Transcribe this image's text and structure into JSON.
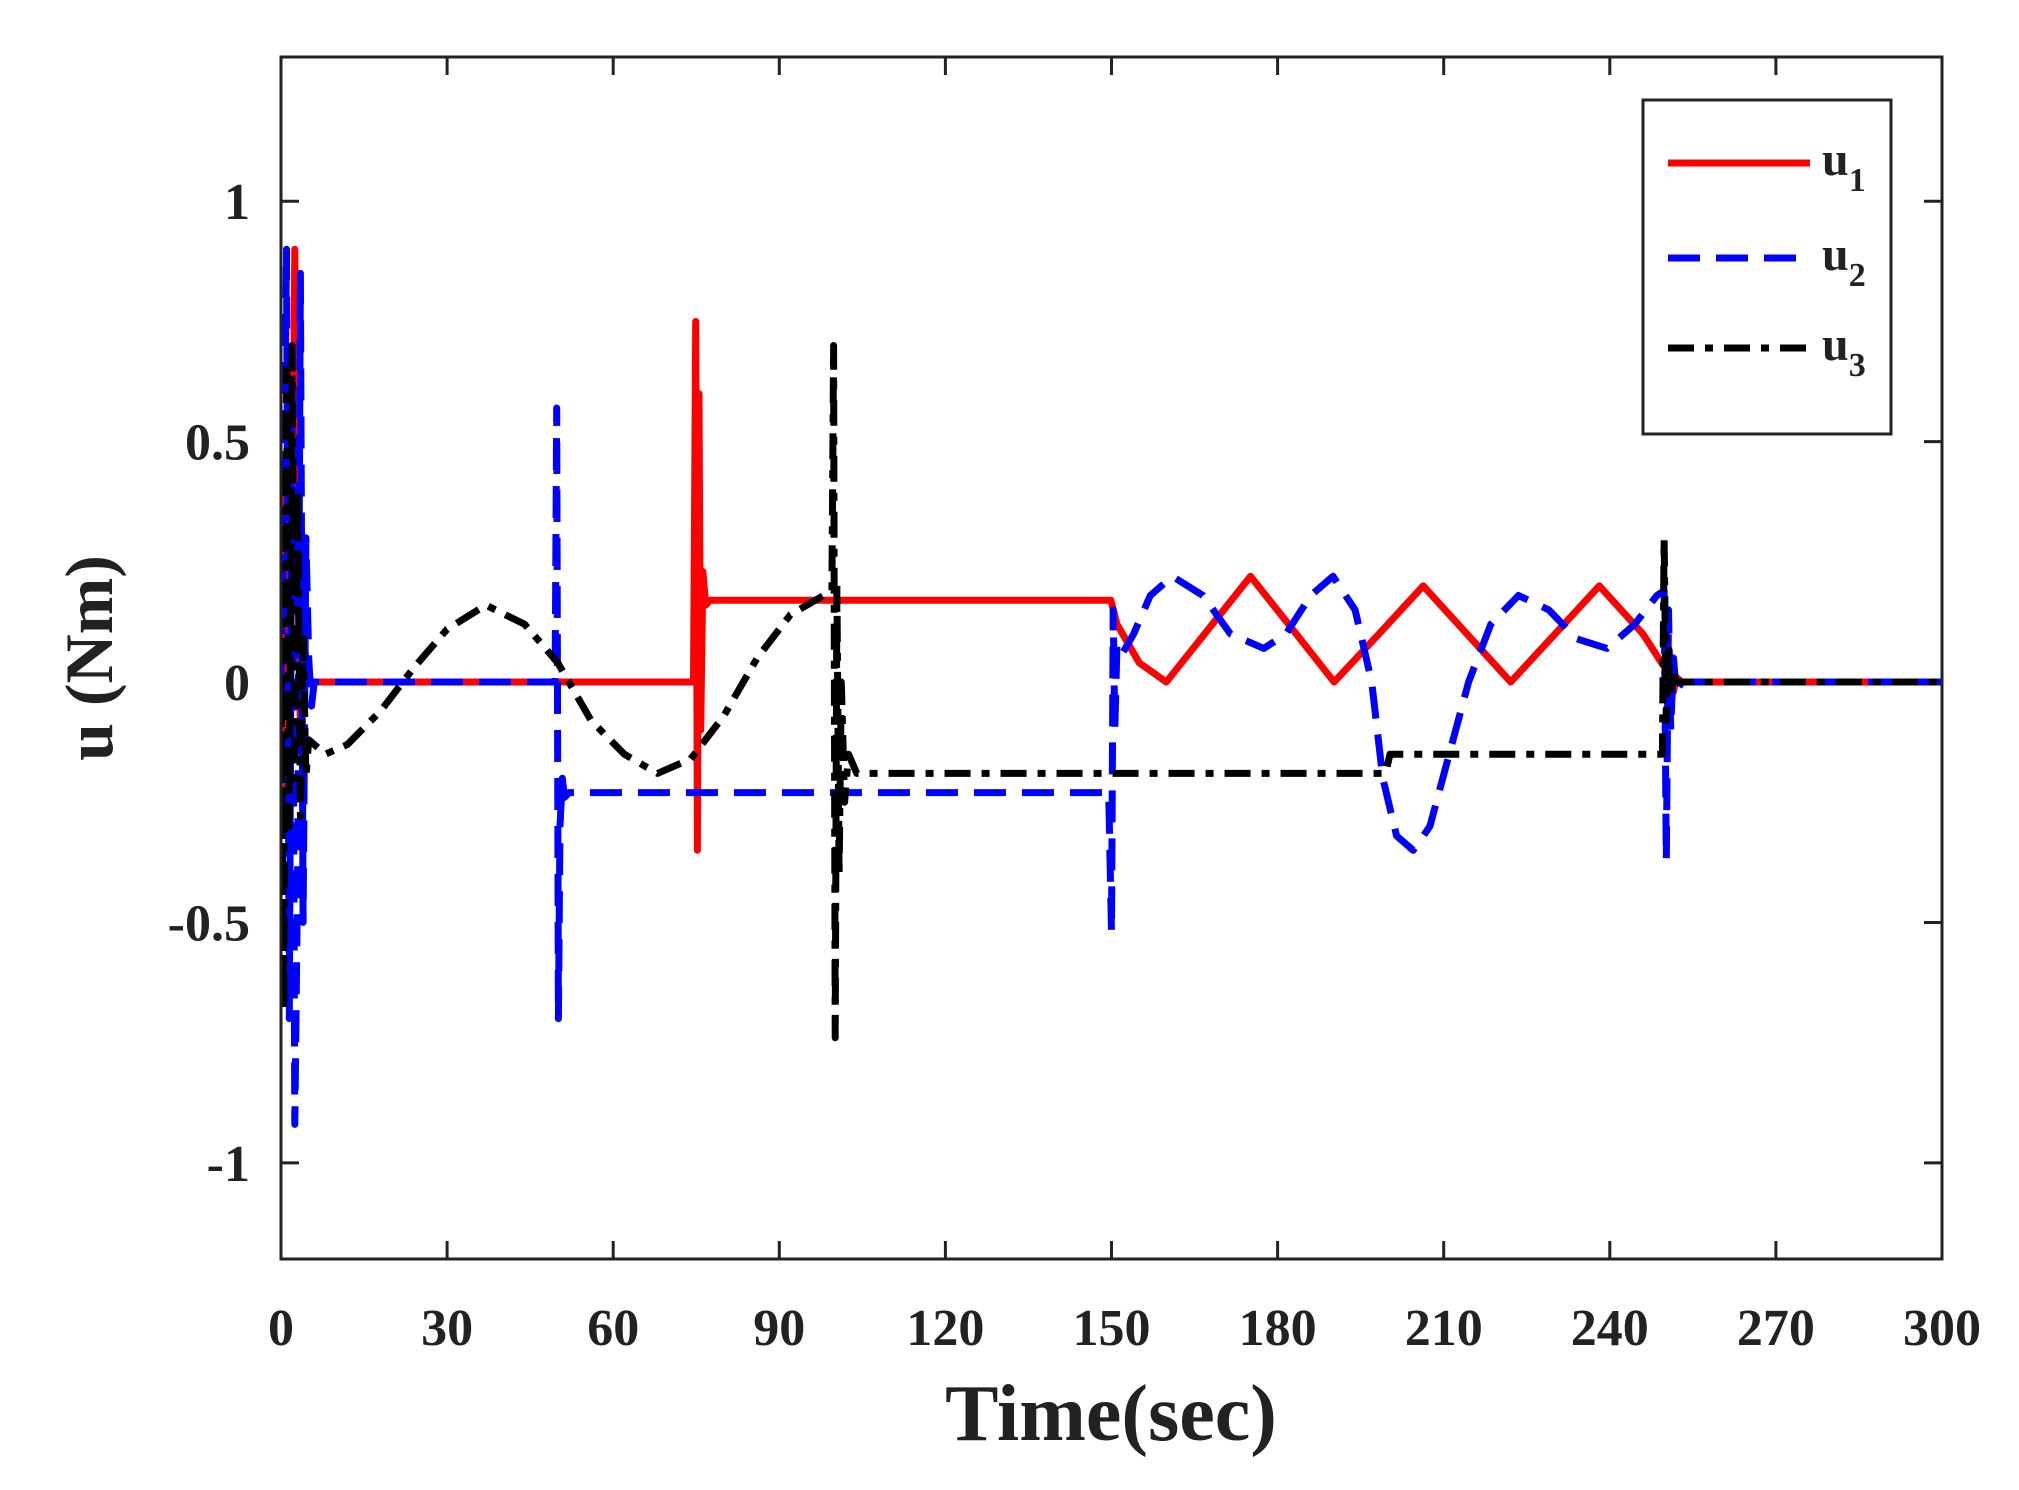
{
  "chart_data": {
    "type": "line",
    "title": "",
    "xlabel": "Time(sec)",
    "ylabel": "u (Nm)",
    "xlim": [
      0,
      300
    ],
    "ylim": [
      -1.2,
      1.3
    ],
    "xticks": [
      0,
      30,
      60,
      90,
      120,
      150,
      180,
      210,
      240,
      270,
      300
    ],
    "yticks": [
      -1,
      -0.5,
      0,
      0.5,
      1
    ],
    "xtick_labels": [
      "0",
      "30",
      "60",
      "90",
      "120",
      "150",
      "180",
      "210",
      "240",
      "270",
      "300"
    ],
    "ytick_labels": [
      "-1",
      "-0.5",
      "0",
      "0.5",
      "1"
    ],
    "grid": false,
    "legend_position": "top-right",
    "series": [
      {
        "name": "u1",
        "legend_base": "u",
        "legend_sub": "1",
        "color": "#ff0000",
        "style": "solid",
        "x": [
          0,
          0.5,
          1,
          1.5,
          2,
          2.5,
          3,
          3.5,
          4,
          5,
          6,
          10,
          20,
          30,
          40,
          50,
          60,
          70,
          74.5,
          74.9,
          75.2,
          75.5,
          75.8,
          76.2,
          76.7,
          77.5,
          80,
          100,
          120,
          140,
          149.9,
          151,
          155,
          159.9,
          167.5,
          175.1,
          182.7,
          190.2,
          198.3,
          206.3,
          214.2,
          222.1,
          230.1,
          238.1,
          246,
          249.9,
          250.2,
          250.5,
          251,
          251.5,
          252,
          253,
          255,
          270,
          290,
          300
        ],
        "y": [
          0,
          0.4,
          -0.3,
          0.6,
          0.2,
          0.9,
          0.3,
          -0.1,
          0.1,
          0.0,
          0.0,
          0.0,
          0.0,
          0.0,
          0.0,
          0.0,
          0.0,
          0.0,
          0.0,
          0.75,
          -0.35,
          0.6,
          -0.1,
          0.23,
          0.16,
          0.17,
          0.17,
          0.17,
          0.17,
          0.17,
          0.17,
          0.12,
          0.04,
          0.0,
          0.11,
          0.22,
          0.11,
          0.0,
          0.1,
          0.2,
          0.1,
          0.0,
          0.1,
          0.2,
          0.1,
          0.03,
          0.1,
          -0.03,
          0.04,
          -0.02,
          0.01,
          0.0,
          0.0,
          0.0,
          0.0,
          0.0
        ]
      },
      {
        "name": "u2",
        "legend_base": "u",
        "legend_sub": "2",
        "color": "#0000ff",
        "style": "dashed",
        "x": [
          0,
          0.5,
          1,
          1.5,
          2,
          2.5,
          3,
          3.5,
          4,
          4.5,
          5,
          5.5,
          6,
          7,
          10,
          20,
          30,
          40,
          49.5,
          49.8,
          50.1,
          50.4,
          50.8,
          51.2,
          52,
          60,
          80,
          100,
          120,
          140,
          149.5,
          150,
          150.3,
          150.6,
          151,
          152,
          154,
          157,
          161,
          166.5,
          171.5,
          177.5,
          181.5,
          186,
          190,
          194,
          197,
          199,
          201.5,
          204.5,
          207.5,
          211,
          214.5,
          218.5,
          223.5,
          229,
          234,
          239.5,
          244.5,
          248.5,
          249.8,
          250.2,
          250.6,
          251,
          251.5,
          252,
          253,
          255,
          270,
          290,
          300
        ],
        "y": [
          0,
          0.3,
          0.9,
          -0.7,
          0.6,
          -0.92,
          -0.4,
          0.85,
          -0.5,
          0.3,
          0.05,
          -0.05,
          0.0,
          0.0,
          0.0,
          0.0,
          0.0,
          0.0,
          0.0,
          0.57,
          -0.7,
          -0.3,
          -0.2,
          -0.24,
          -0.23,
          -0.23,
          -0.23,
          -0.23,
          -0.23,
          -0.23,
          -0.23,
          -0.52,
          0.15,
          -0.1,
          0.08,
          0.06,
          0.1,
          0.18,
          0.22,
          0.18,
          0.1,
          0.07,
          0.1,
          0.18,
          0.22,
          0.15,
          0.0,
          -0.2,
          -0.32,
          -0.35,
          -0.3,
          -0.15,
          0.0,
          0.12,
          0.18,
          0.15,
          0.09,
          0.07,
          0.12,
          0.18,
          0.19,
          -0.37,
          0.15,
          -0.1,
          0.05,
          -0.02,
          0.0,
          0.0,
          0.0,
          0.0,
          0.0
        ]
      },
      {
        "name": "u3",
        "legend_base": "u",
        "legend_sub": "3",
        "color": "#000000",
        "style": "dashdot",
        "x": [
          0,
          0.5,
          1,
          1.5,
          2,
          2.5,
          3,
          3.5,
          4,
          4.5,
          5,
          6,
          8,
          12,
          18,
          24,
          30,
          37,
          44,
          50,
          56,
          62,
          68,
          74,
          80,
          86,
          92,
          99.5,
          99.8,
          100.1,
          100.4,
          100.8,
          101.2,
          101.8,
          102.5,
          104,
          110,
          130,
          150,
          170,
          190,
          199.5,
          200.3,
          210,
          230,
          249.5,
          249.8,
          250.2,
          250.6,
          251,
          251.5,
          252,
          253,
          255,
          270,
          290,
          300
        ],
        "y": [
          0,
          -0.68,
          0.65,
          -0.3,
          0.7,
          -0.2,
          0.4,
          -0.28,
          0.1,
          -0.2,
          -0.12,
          -0.13,
          -0.15,
          -0.13,
          -0.06,
          0.03,
          0.11,
          0.16,
          0.12,
          0.04,
          -0.08,
          -0.15,
          -0.19,
          -0.16,
          -0.07,
          0.05,
          0.14,
          0.19,
          0.7,
          -0.74,
          0.2,
          -0.4,
          0.0,
          -0.25,
          -0.15,
          -0.19,
          -0.19,
          -0.19,
          -0.19,
          -0.19,
          -0.19,
          -0.19,
          -0.15,
          -0.15,
          -0.15,
          -0.15,
          0.3,
          -0.08,
          0.08,
          -0.03,
          0.02,
          0.0,
          0.0,
          0.0,
          0.0,
          0.0,
          0.0
        ]
      }
    ]
  }
}
